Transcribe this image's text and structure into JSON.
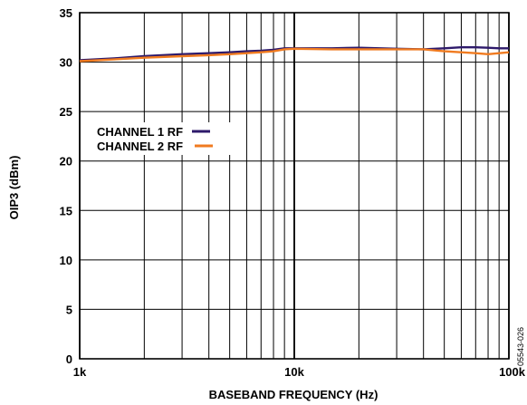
{
  "chart_data": {
    "type": "line",
    "x_scale": "log",
    "xlabel": "BASEBAND FREQUENCY (Hz)",
    "ylabel": "OIP3 (dBm)",
    "xlim": [
      1000,
      100000
    ],
    "ylim": [
      0,
      35
    ],
    "x_tick_labels": [
      "1k",
      "10k",
      "100k"
    ],
    "y_tick_labels": [
      "0",
      "5",
      "10",
      "15",
      "20",
      "25",
      "30",
      "35"
    ],
    "grid": true,
    "legend_position": "left",
    "series": [
      {
        "name": "CHANNEL 1 RF",
        "color": "#2e1a6b",
        "x": [
          1000,
          1500,
          2000,
          3000,
          4000,
          5000,
          6000,
          7000,
          8000,
          9000,
          10000,
          15000,
          20000,
          30000,
          40000,
          50000,
          60000,
          70000,
          80000,
          90000,
          100000
        ],
        "y": [
          30.2,
          30.4,
          30.6,
          30.8,
          30.9,
          31.0,
          31.1,
          31.15,
          31.25,
          31.4,
          31.4,
          31.4,
          31.45,
          31.35,
          31.3,
          31.4,
          31.5,
          31.5,
          31.45,
          31.4,
          31.4
        ]
      },
      {
        "name": "CHANNEL 2 RF",
        "color": "#f07b20",
        "x": [
          1000,
          1500,
          2000,
          3000,
          4000,
          5000,
          6000,
          7000,
          8000,
          9000,
          10000,
          15000,
          20000,
          30000,
          40000,
          50000,
          60000,
          70000,
          80000,
          90000,
          100000
        ],
        "y": [
          30.1,
          30.3,
          30.45,
          30.6,
          30.7,
          30.8,
          30.9,
          31.0,
          31.1,
          31.3,
          31.35,
          31.3,
          31.3,
          31.3,
          31.3,
          31.1,
          31.0,
          30.9,
          30.8,
          30.9,
          31.0
        ]
      }
    ]
  },
  "figure_id": "05543-026"
}
